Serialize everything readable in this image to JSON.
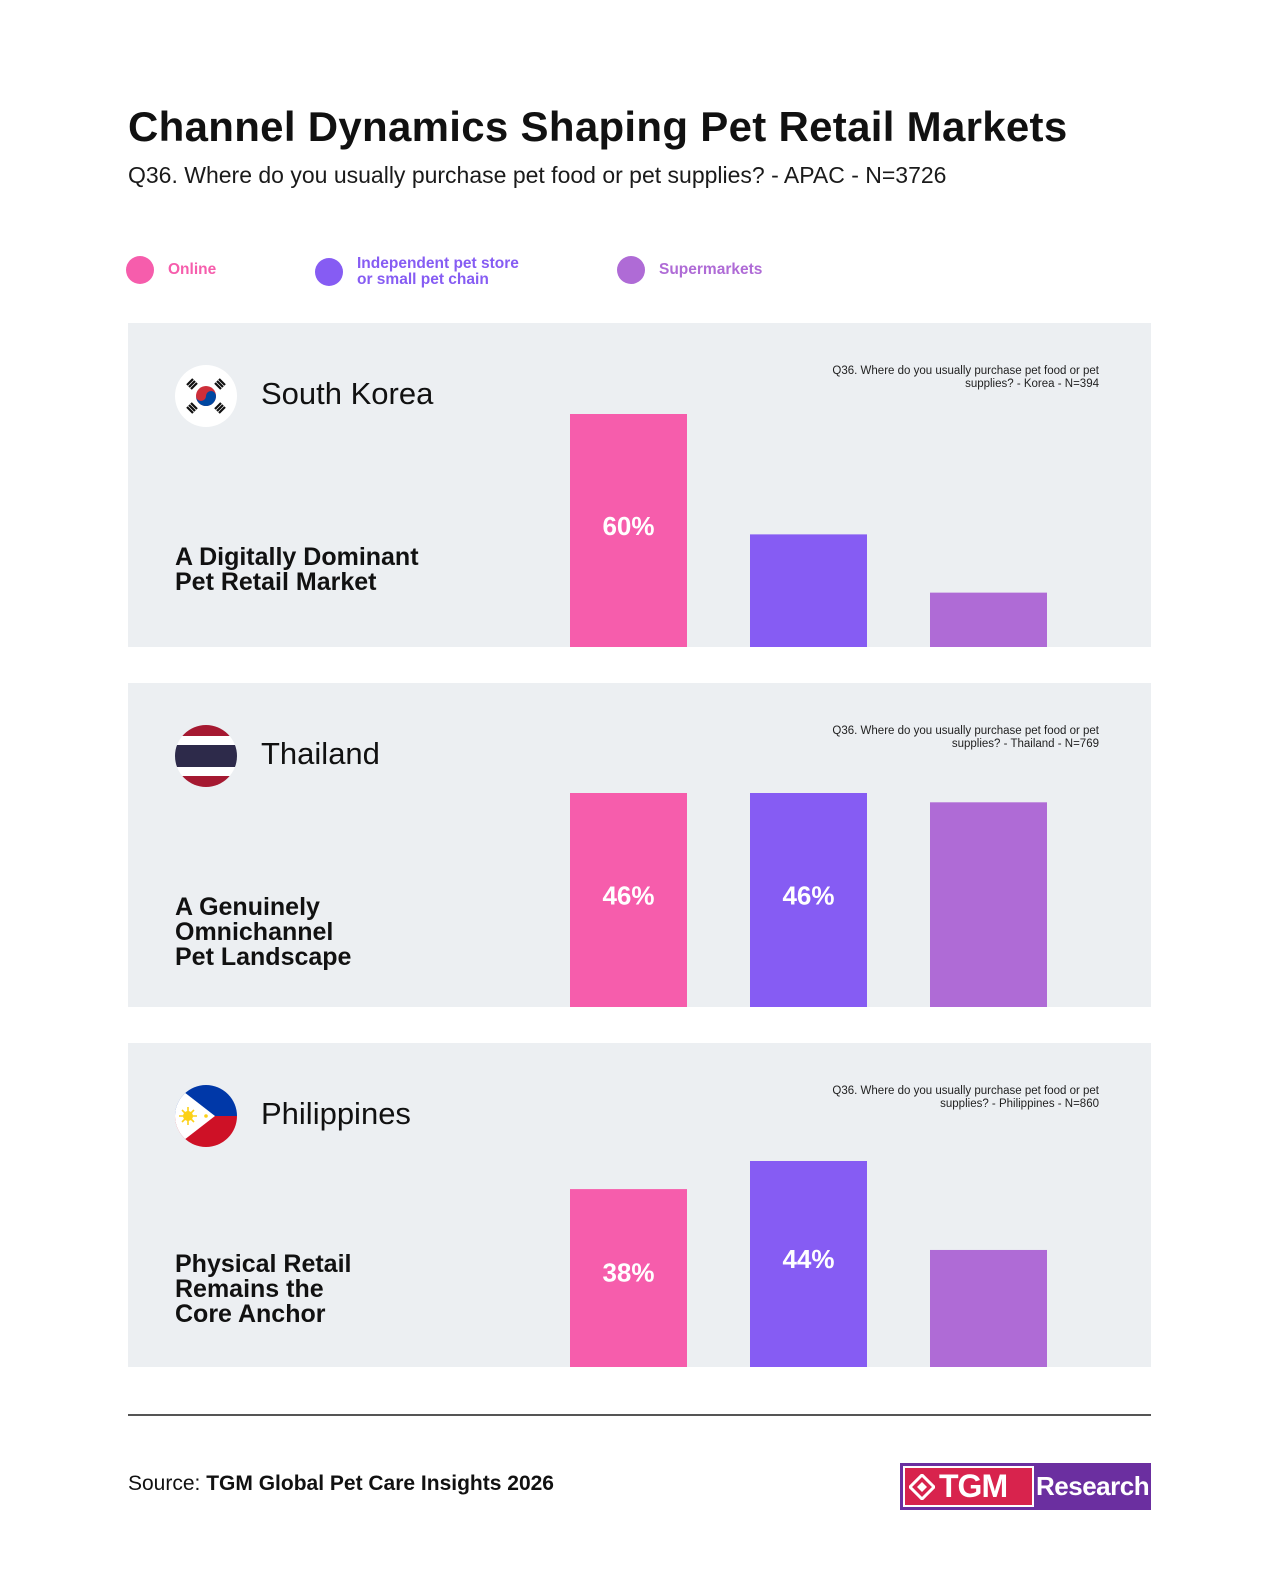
{
  "header": {
    "title": "Channel Dynamics Shaping Pet Retail Markets",
    "subtitle": "Q36. Where do you usually purchase pet food or pet supplies? - APAC - N=3726"
  },
  "legend": [
    {
      "label": "Online",
      "color": "#f65dac"
    },
    {
      "label": "Independent pet store\nor small pet chain",
      "color": "#865cf3"
    },
    {
      "label": "Supermarkets",
      "color": "#af6bd6"
    }
  ],
  "chart_data": [
    {
      "type": "bar",
      "country": "South Korea",
      "headline": "A Digitally Dominant\nPet Retail Market",
      "note": "Q36. Where do you usually purchase pet food or pet supplies? - Korea - N=394",
      "categories": [
        "Online",
        "Independent pet store or small pet chain",
        "Supermarkets"
      ],
      "values": [
        60,
        29,
        14
      ],
      "data_labels": [
        "60%",
        "",
        ""
      ],
      "ylim": [
        0,
        60
      ]
    },
    {
      "type": "bar",
      "country": "Thailand",
      "headline": "A Genuinely\nOmnichannel\nPet Landscape",
      "note": "Q36. Where do you usually purchase pet food or pet supplies? - Thailand - N=769",
      "categories": [
        "Online",
        "Independent pet store or small pet chain",
        "Supermarkets"
      ],
      "values": [
        46,
        46,
        44
      ],
      "data_labels": [
        "46%",
        "46%",
        ""
      ],
      "ylim": [
        0,
        46
      ]
    },
    {
      "type": "bar",
      "country": "Philippines",
      "headline": "Physical Retail\nRemains the\nCore Anchor",
      "note": "Q36. Where do you usually purchase pet food or pet supplies? - Philippines - N=860",
      "categories": [
        "Online",
        "Independent pet store or small pet chain",
        "Supermarkets"
      ],
      "values": [
        38,
        44,
        25
      ],
      "data_labels": [
        "38%",
        "44%",
        ""
      ],
      "ylim": [
        0,
        44
      ]
    }
  ],
  "footer": {
    "source_prefix": "Source: ",
    "source_name": "TGM Global Pet Care Insights 2026"
  },
  "logo": {
    "left_text": "TGM",
    "right_text": "Research",
    "icon": "diamond-logo-icon"
  },
  "colors": {
    "panel_bg": "#eceff2",
    "online": "#f65dac",
    "independent": "#865cf3",
    "supermarkets": "#af6bd6"
  }
}
